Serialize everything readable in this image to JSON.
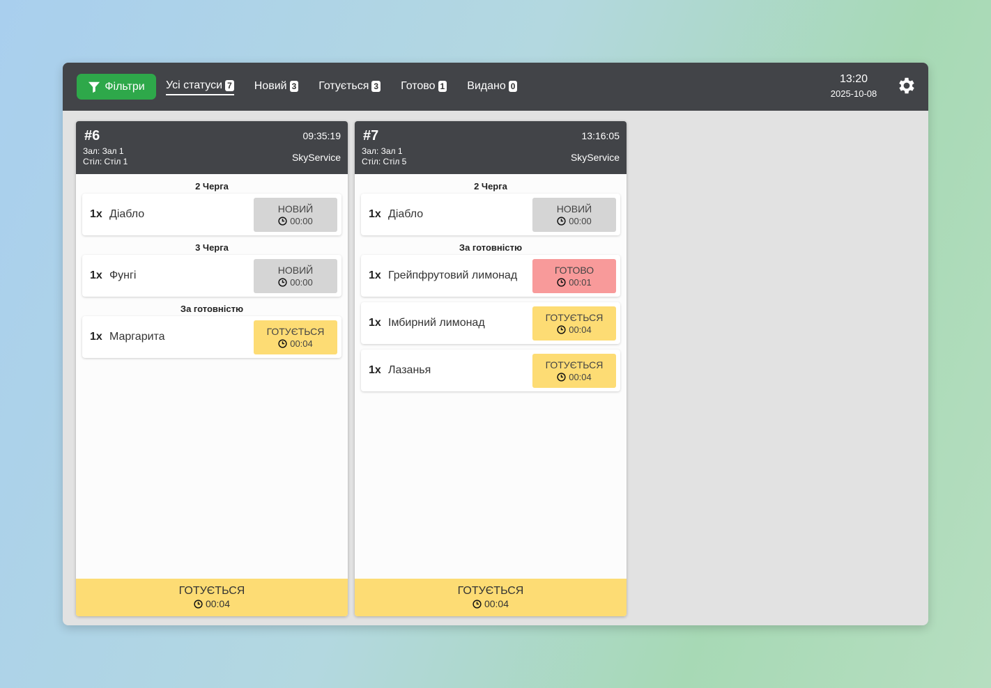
{
  "filter_button": {
    "label": "Фільтри"
  },
  "tabs": [
    {
      "label": "Усі статуси",
      "count": "7",
      "active": true
    },
    {
      "label": "Новий",
      "count": "3"
    },
    {
      "label": "Готується",
      "count": "3"
    },
    {
      "label": "Готово",
      "count": "1"
    },
    {
      "label": "Видано",
      "count": "0"
    }
  ],
  "clock": {
    "time": "13:20",
    "date": "2025-10-08"
  },
  "colors": {
    "topbar": "#424448",
    "filter": "#2ea84a",
    "new": "#d5d5d5",
    "cooking": "#fddc74",
    "ready": "#f89a9a"
  },
  "orders": [
    {
      "number": "#6",
      "time": "09:35:19",
      "hall": "Зал: Зал 1",
      "table": "Стіл: Стіл 1",
      "source": "SkyService",
      "groups": [
        {
          "title": "2 Черга",
          "items": [
            {
              "qty": "1x",
              "name": "Діабло",
              "status": "НОВИЙ",
              "timer": "00:00"
            }
          ]
        },
        {
          "title": "3 Черга",
          "items": [
            {
              "qty": "1x",
              "name": "Фунгі",
              "status": "НОВИЙ",
              "timer": "00:00"
            }
          ]
        },
        {
          "title": "За готовністю",
          "items": [
            {
              "qty": "1x",
              "name": "Маргарита",
              "status": "ГОТУЄТЬСЯ",
              "timer": "00:04"
            }
          ]
        }
      ],
      "footer": {
        "status": "ГОТУЄТЬСЯ",
        "timer": "00:04"
      }
    },
    {
      "number": "#7",
      "time": "13:16:05",
      "hall": "Зал: Зал 1",
      "table": "Стіл: Стіл 5",
      "source": "SkyService",
      "groups": [
        {
          "title": "2 Черга",
          "items": [
            {
              "qty": "1x",
              "name": "Діабло",
              "status": "НОВИЙ",
              "timer": "00:00"
            }
          ]
        },
        {
          "title": "За готовністю",
          "items": [
            {
              "qty": "1x",
              "name": "Грейпфрутовий лимонад",
              "status": "ГОТОВО",
              "timer": "00:01"
            },
            {
              "qty": "1x",
              "name": "Імбирний лимонад",
              "status": "ГОТУЄТЬСЯ",
              "timer": "00:04"
            },
            {
              "qty": "1x",
              "name": "Лазанья",
              "status": "ГОТУЄТЬСЯ",
              "timer": "00:04"
            }
          ]
        }
      ],
      "footer": {
        "status": "ГОТУЄТЬСЯ",
        "timer": "00:04"
      }
    }
  ]
}
